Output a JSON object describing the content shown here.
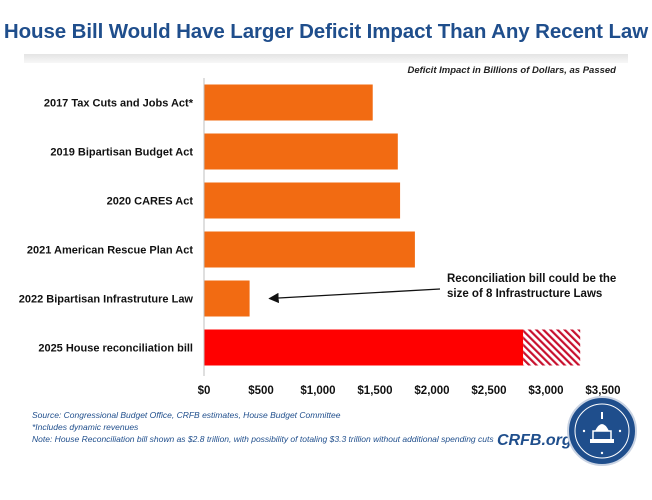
{
  "chart_data": {
    "type": "bar",
    "orientation": "horizontal",
    "title": "House Bill Would Have Larger Deficit Impact Than Any Recent Law",
    "subtitle": "Deficit Impact in Billions of Dollars, as Passed",
    "categories": [
      "2017 Tax Cuts and Jobs Act*",
      "2019 Bipartisan Budget Act",
      "2020 CARES Act",
      "2021 American Rescue Plan Act",
      "2022 Bipartisan Infrastruture Law",
      "2025 House reconciliation bill"
    ],
    "values": [
      1480,
      1700,
      1720,
      1850,
      400,
      2800
    ],
    "extension": {
      "category": "2025 House reconciliation bill",
      "from": 2800,
      "to": 3300,
      "style": "hatched"
    },
    "xlim": [
      0,
      3500
    ],
    "xticks": [
      "$0",
      "$500",
      "$1,000",
      "$1,500",
      "$2,000",
      "$2,500",
      "$3,000",
      "$3,500"
    ],
    "grid": false,
    "annotation": {
      "lines": [
        "Reconciliation bill could be the",
        "size of 8 Infrastructure Laws"
      ],
      "points_to": "2022 Bipartisan Infrastruture Law"
    }
  },
  "colors": {
    "title": "#1f4e8c",
    "bar": "#f26b12",
    "highlight_bar": "#ff0000",
    "hatch": "#c8102e",
    "footer": "#1f4e8c"
  },
  "footer": {
    "source": "Source: Congressional Budget Office, CRFB estimates, House Budget Committee",
    "note1": "*Includes dynamic revenues",
    "note2": "Note: House Reconciliation bill shown as $2.8 trillion, with possibility of totaling $3.3 trillion without additional spending cuts"
  },
  "brand": "CRFB.org",
  "seal_icon": "capitol-seal-icon"
}
